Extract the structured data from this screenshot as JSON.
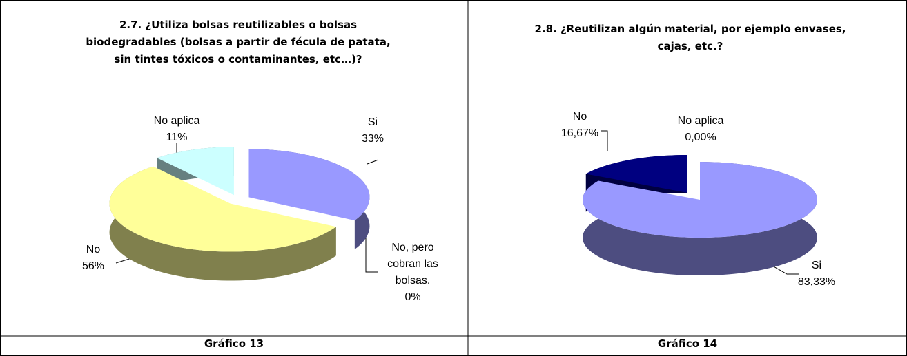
{
  "chart_data": [
    {
      "type": "pie",
      "title": "2.7. ¿Utiliza bolsas reutilizables o bolsas biodegradables (bolsas a partir de fécula de patata, sin tintes tóxicos o contaminantes, etc…)?",
      "categories": [
        "Si",
        "No, pero cobran las bolsas.",
        "No",
        "No aplica"
      ],
      "values": [
        33,
        0,
        56,
        11
      ],
      "value_labels": [
        "33%",
        "0%",
        "56%",
        "11%"
      ],
      "colors": [
        "#9999ff",
        "#000066",
        "#ffff99",
        "#ccffff"
      ]
    },
    {
      "type": "pie",
      "title": "2.8. ¿Reutilizan algún material, por ejemplo envases, cajas, etc.?",
      "categories": [
        "Si",
        "No",
        "No aplica"
      ],
      "values": [
        83.33,
        16.67,
        0
      ],
      "value_labels": [
        "83,33%",
        "16,67%",
        "0,00%"
      ],
      "colors": [
        "#9999ff",
        "#000080",
        "#ffffff"
      ]
    }
  ],
  "captions": [
    "Gráfico 13",
    "Gráfico 14"
  ]
}
